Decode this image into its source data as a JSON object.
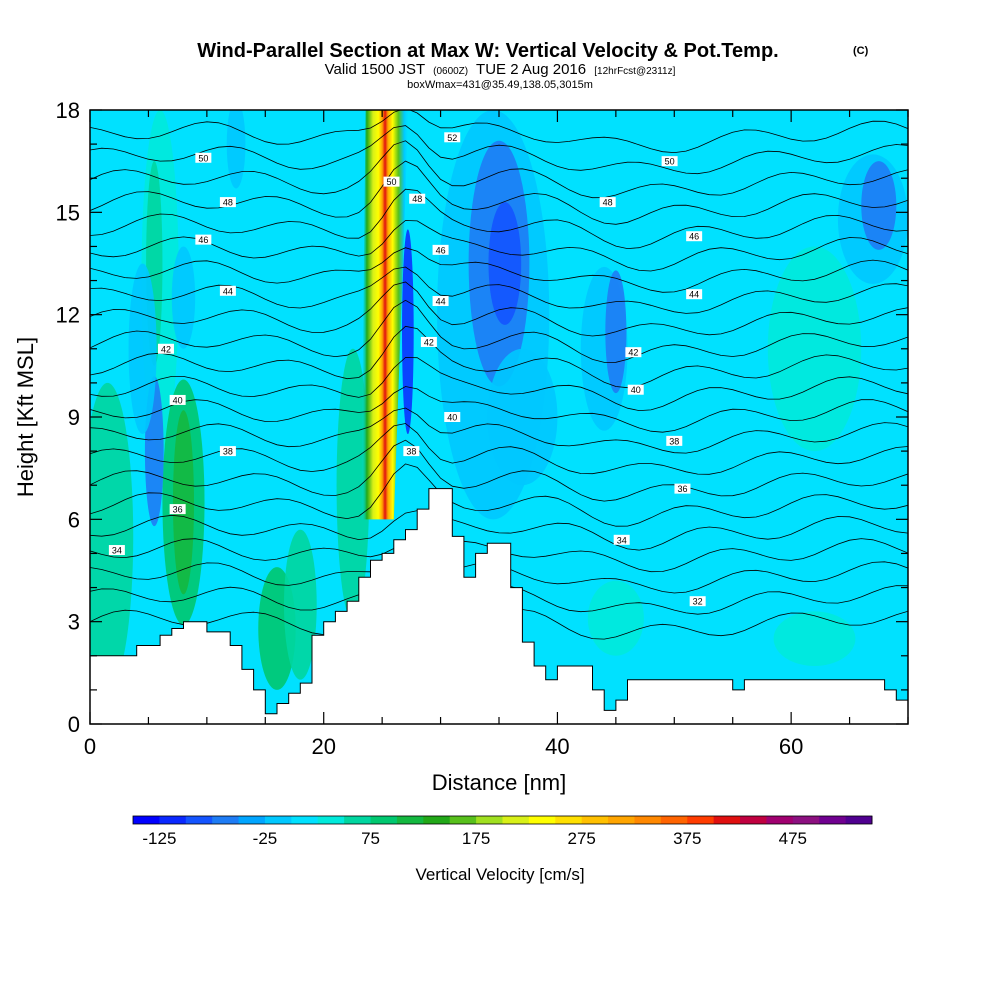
{
  "chart_data": {
    "type": "heatmap",
    "title": "Wind-Parallel Section at Max W: Vertical Velocity & Pot.Temp.",
    "title_mark": "(C)",
    "subtitle": {
      "a": "Valid 1500 JST",
      "b": "(0600Z)",
      "c": "TUE 2 Aug 2016",
      "d": "[12hrFcst@2311z]"
    },
    "subtitle2": "boxWmax=431@35.49,138.05,3015m",
    "xlabel": "Distance [nm]",
    "ylabel": "Height [Kft MSL]",
    "xlim": [
      0,
      70
    ],
    "ylim": [
      0,
      18
    ],
    "xticks": [
      0,
      20,
      40,
      60
    ],
    "yticks": [
      0,
      3,
      6,
      9,
      12,
      15,
      18
    ],
    "colorbar": {
      "title": "Vertical Velocity [cm/s]",
      "range": [
        -150,
        550
      ],
      "step": 25,
      "ticks": [
        -125,
        -25,
        75,
        175,
        275,
        375,
        475
      ],
      "colors": [
        "#0000ff",
        "#0a28ff",
        "#1454ff",
        "#1e7cf5",
        "#00a5ff",
        "#00c8ff",
        "#00e1ff",
        "#00eadb",
        "#00d6a0",
        "#00c870",
        "#14b840",
        "#22a818",
        "#58c01c",
        "#a0e020",
        "#d8f018",
        "#ffff00",
        "#ffe000",
        "#ffc000",
        "#ffa500",
        "#ff8800",
        "#ff6400",
        "#ff3c00",
        "#e01010",
        "#c00040",
        "#a00070",
        "#8c1080",
        "#700090",
        "#500090"
      ]
    },
    "terrain": [
      [
        0,
        2.0
      ],
      [
        4,
        2.0
      ],
      [
        4,
        2.3
      ],
      [
        6,
        2.3
      ],
      [
        6,
        2.6
      ],
      [
        7,
        2.6
      ],
      [
        7,
        2.8
      ],
      [
        8,
        2.8
      ],
      [
        8,
        3.0
      ],
      [
        10,
        3.0
      ],
      [
        10,
        2.7
      ],
      [
        12,
        2.7
      ],
      [
        12,
        2.3
      ],
      [
        13,
        2.3
      ],
      [
        13,
        1.6
      ],
      [
        14,
        1.6
      ],
      [
        14,
        1.0
      ],
      [
        15,
        1.0
      ],
      [
        15,
        0.3
      ],
      [
        16,
        0.3
      ],
      [
        16,
        0.6
      ],
      [
        17,
        0.6
      ],
      [
        17,
        0.9
      ],
      [
        18,
        0.9
      ],
      [
        18,
        1.2
      ],
      [
        19,
        1.2
      ],
      [
        19,
        2.6
      ],
      [
        20,
        2.6
      ],
      [
        20,
        3.0
      ],
      [
        21,
        3.0
      ],
      [
        21,
        3.3
      ],
      [
        22,
        3.3
      ],
      [
        22,
        3.6
      ],
      [
        23,
        3.6
      ],
      [
        23,
        4.3
      ],
      [
        24,
        4.3
      ],
      [
        24,
        4.8
      ],
      [
        25,
        4.8
      ],
      [
        25,
        5.0
      ],
      [
        26,
        5.0
      ],
      [
        26,
        5.4
      ],
      [
        27,
        5.4
      ],
      [
        27,
        5.7
      ],
      [
        28,
        5.7
      ],
      [
        28,
        6.3
      ],
      [
        29,
        6.3
      ],
      [
        29,
        6.9
      ],
      [
        31,
        6.9
      ],
      [
        31,
        5.5
      ],
      [
        32,
        5.5
      ],
      [
        32,
        4.3
      ],
      [
        33,
        4.3
      ],
      [
        33,
        5.0
      ],
      [
        34,
        5.0
      ],
      [
        34,
        5.3
      ],
      [
        36,
        5.3
      ],
      [
        36,
        4.0
      ],
      [
        37,
        4.0
      ],
      [
        37,
        2.4
      ],
      [
        38,
        2.4
      ],
      [
        38,
        1.7
      ],
      [
        39,
        1.7
      ],
      [
        39,
        1.3
      ],
      [
        40,
        1.3
      ],
      [
        40,
        1.7
      ],
      [
        43,
        1.7
      ],
      [
        43,
        1.0
      ],
      [
        44,
        1.0
      ],
      [
        44,
        0.4
      ],
      [
        45,
        0.4
      ],
      [
        45,
        0.7
      ],
      [
        46,
        0.7
      ],
      [
        46,
        1.3
      ],
      [
        55,
        1.3
      ],
      [
        55,
        1.0
      ],
      [
        56,
        1.0
      ],
      [
        56,
        1.3
      ],
      [
        68,
        1.3
      ],
      [
        68,
        1.0
      ],
      [
        69,
        1.0
      ],
      [
        69,
        0.7
      ],
      [
        70,
        0.7
      ],
      [
        70,
        0
      ]
    ],
    "theta_labels": [
      {
        "x": 2.3,
        "y": 5.1,
        "v": "34"
      },
      {
        "x": 7.5,
        "y": 6.3,
        "v": "36"
      },
      {
        "x": 11.8,
        "y": 8.0,
        "v": "38"
      },
      {
        "x": 7.5,
        "y": 9.5,
        "v": "40"
      },
      {
        "x": 6.5,
        "y": 11.0,
        "v": "42"
      },
      {
        "x": 11.8,
        "y": 12.7,
        "v": "44"
      },
      {
        "x": 9.7,
        "y": 14.2,
        "v": "46"
      },
      {
        "x": 11.8,
        "y": 15.3,
        "v": "48"
      },
      {
        "x": 9.7,
        "y": 16.6,
        "v": "50"
      },
      {
        "x": 27.5,
        "y": 8.0,
        "v": "38"
      },
      {
        "x": 31.0,
        "y": 9.0,
        "v": "40"
      },
      {
        "x": 29.0,
        "y": 11.2,
        "v": "42"
      },
      {
        "x": 30.0,
        "y": 12.4,
        "v": "44"
      },
      {
        "x": 30.0,
        "y": 13.9,
        "v": "46"
      },
      {
        "x": 28.0,
        "y": 15.4,
        "v": "48"
      },
      {
        "x": 25.8,
        "y": 15.9,
        "v": "50"
      },
      {
        "x": 31.0,
        "y": 17.2,
        "v": "52"
      },
      {
        "x": 45.5,
        "y": 5.4,
        "v": "34"
      },
      {
        "x": 50.0,
        "y": 8.3,
        "v": "38"
      },
      {
        "x": 52.0,
        "y": 3.6,
        "v": "32"
      },
      {
        "x": 50.7,
        "y": 6.9,
        "v": "36"
      },
      {
        "x": 46.7,
        "y": 9.8,
        "v": "40"
      },
      {
        "x": 46.5,
        "y": 10.9,
        "v": "42"
      },
      {
        "x": 51.7,
        "y": 12.6,
        "v": "44"
      },
      {
        "x": 51.7,
        "y": 14.3,
        "v": "46"
      },
      {
        "x": 44.3,
        "y": 15.3,
        "v": "48"
      },
      {
        "x": 49.6,
        "y": 16.5,
        "v": "50"
      }
    ]
  }
}
